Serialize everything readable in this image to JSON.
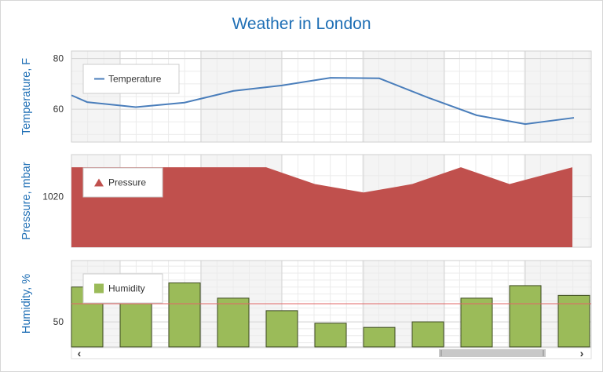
{
  "title": "Weather in London",
  "colors": {
    "temperature": "#4a7ebb",
    "pressure": "#c0504d",
    "humidity": "#9bbb59",
    "humidity_border": "#3d4a22",
    "constant_line": "#e06666",
    "title": "#1f6fb5",
    "band": "#f4f4f4"
  },
  "scrollbar": {
    "left_arrow": "‹",
    "right_arrow": "›"
  },
  "chart_data": [
    {
      "type": "line",
      "series": [
        {
          "name": "Temperature",
          "values": [
            65.5,
            62.8,
            60.8,
            62.6,
            67.2,
            69.4,
            72.4,
            72.2,
            64.6,
            57.6,
            54.1,
            56.6
          ]
        }
      ],
      "ylabel": "Temperature, F",
      "yticks": [
        60,
        80
      ],
      "ylim": [
        47,
        83
      ],
      "grid": true,
      "legend": "top-left"
    },
    {
      "type": "area",
      "series": [
        {
          "name": "Pressure",
          "values": [
            1027,
            1027,
            1027,
            1027,
            1027,
            1023,
            1021,
            1023,
            1027,
            1023,
            1027
          ]
        }
      ],
      "ylabel": "Pressure, mbar",
      "yticks": [
        1020
      ],
      "ylim": [
        1008,
        1030
      ],
      "grid": true,
      "legend": "top-left"
    },
    {
      "type": "bar",
      "series": [
        {
          "name": "Humidity",
          "values": [
            75,
            64,
            78,
            67,
            58,
            49,
            46,
            50,
            67,
            76,
            69
          ]
        }
      ],
      "ylabel": "Humidity, %",
      "yticks": [
        50
      ],
      "ylim": [
        32,
        94
      ],
      "constant_line": 63,
      "grid": true,
      "legend": "top-left"
    }
  ]
}
